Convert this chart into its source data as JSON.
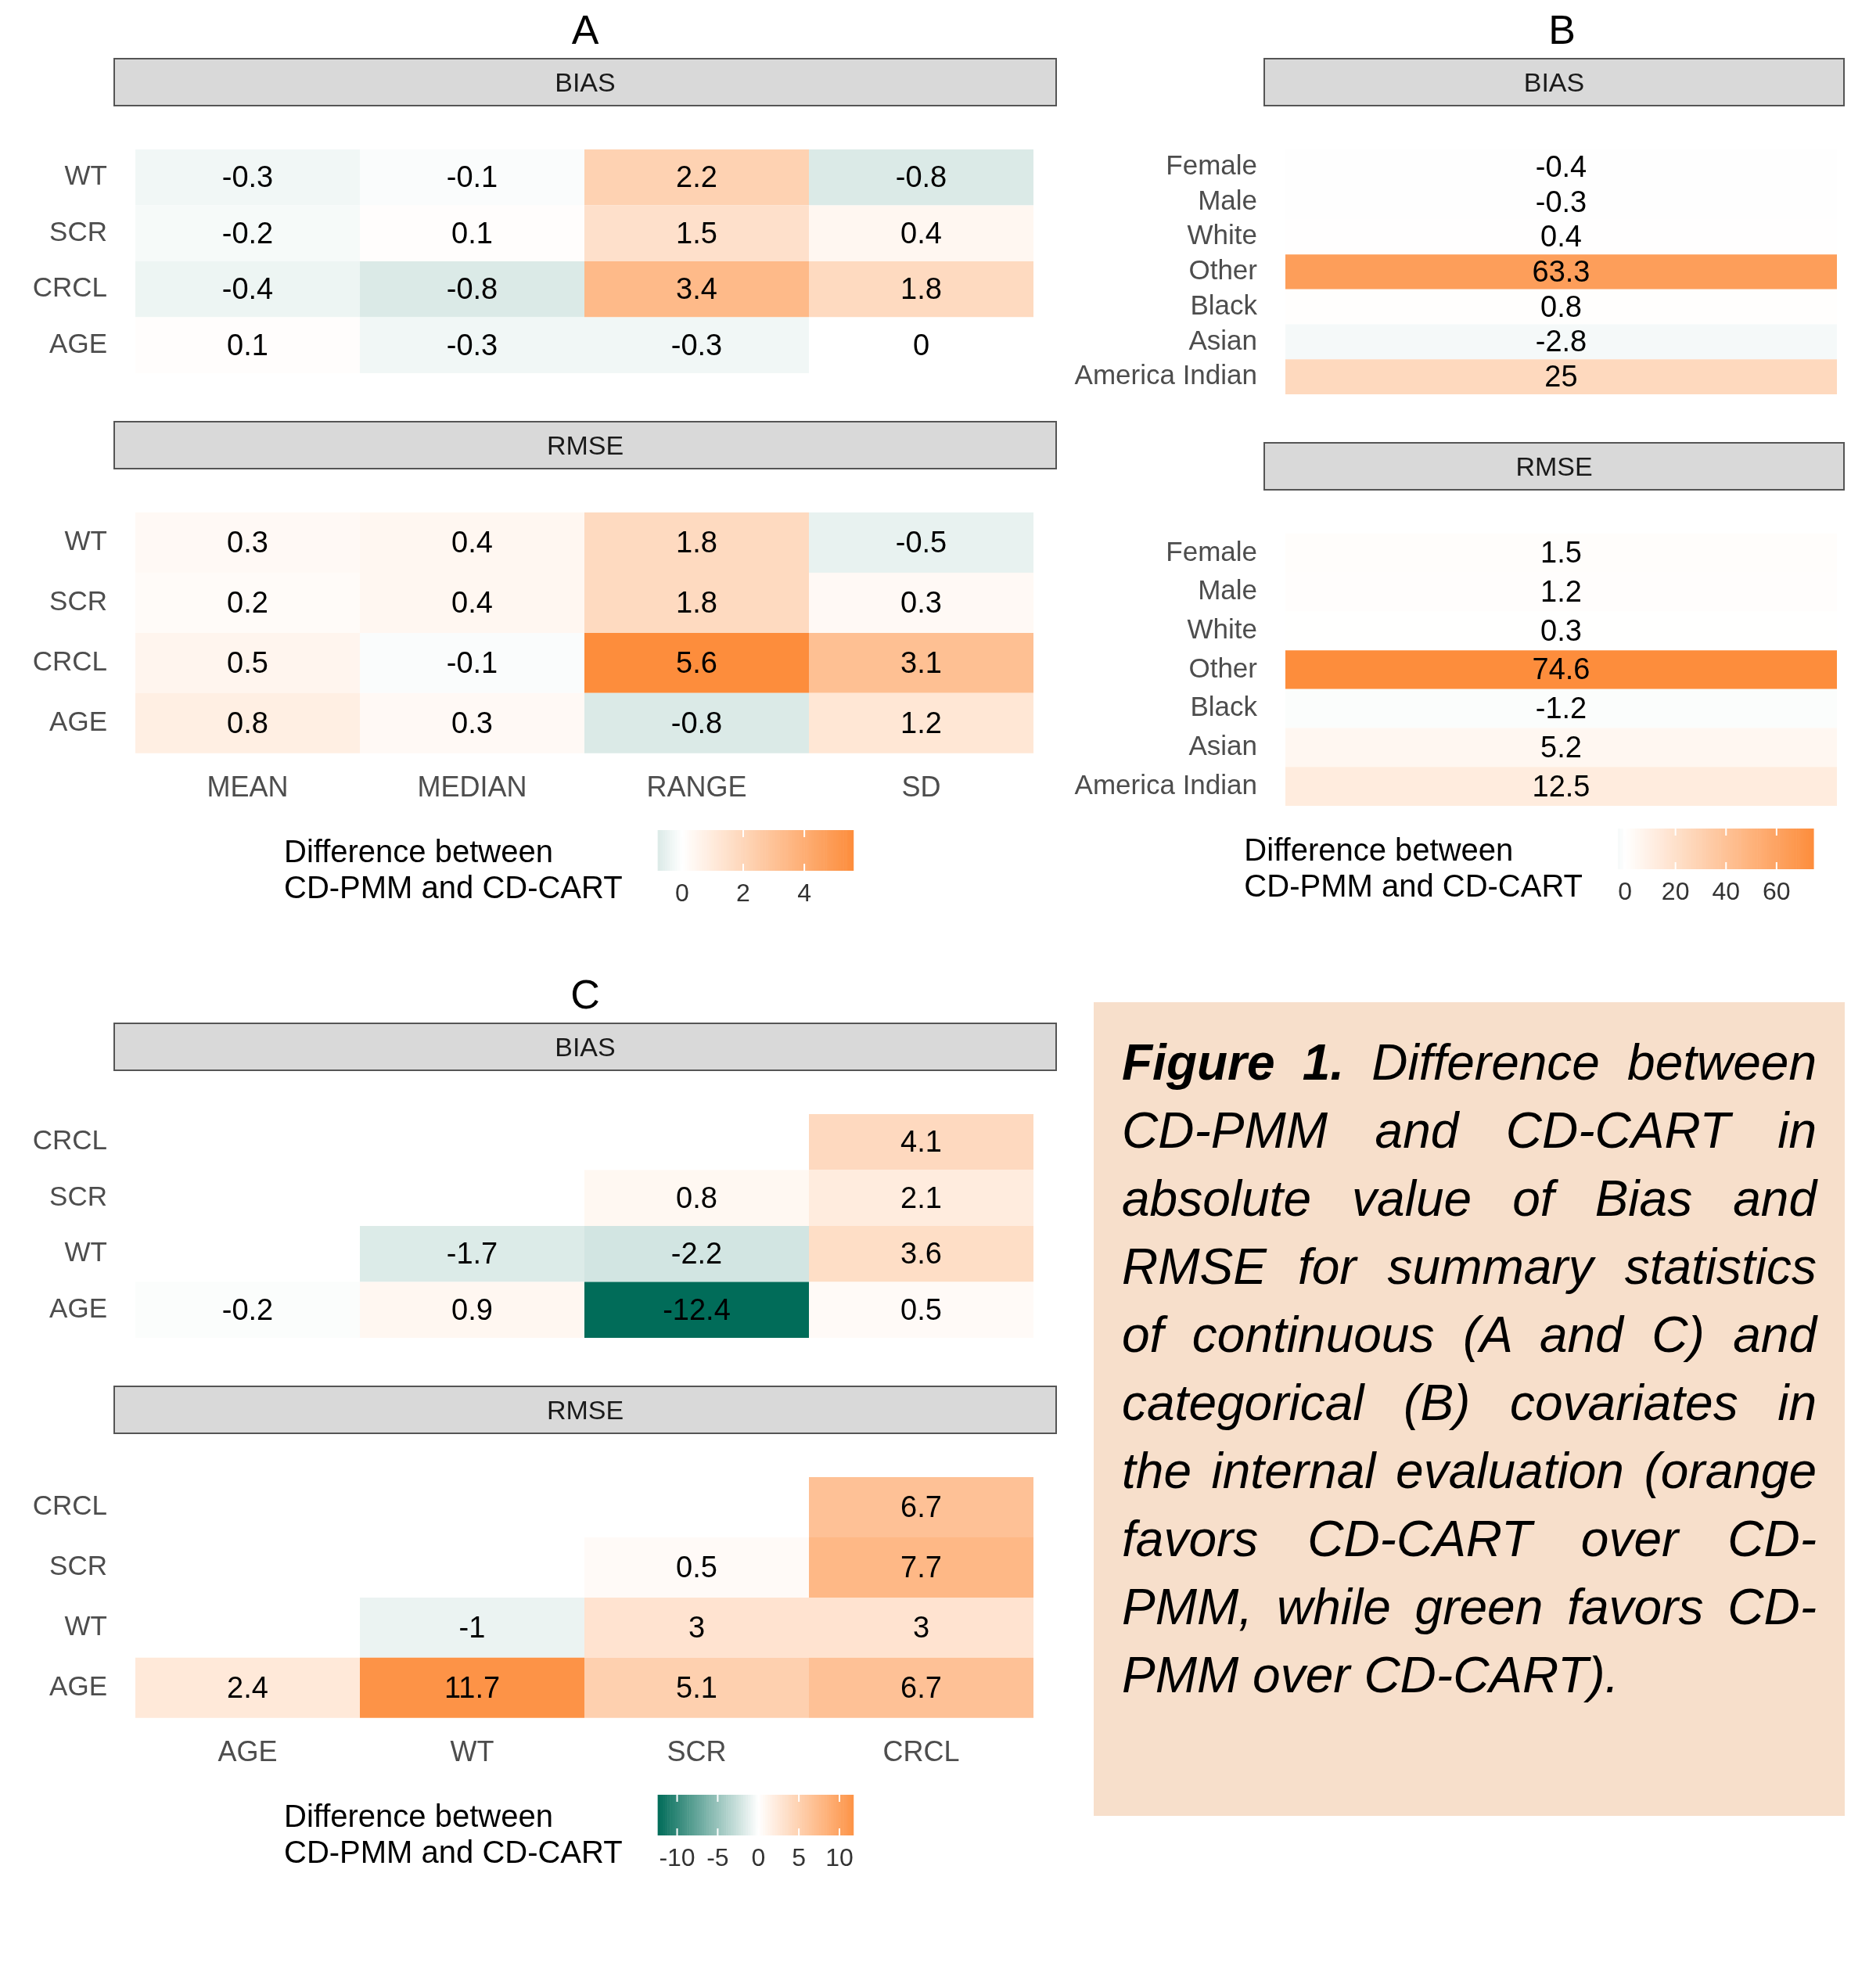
{
  "chart_data": [
    {
      "type": "heatmap",
      "title": "A",
      "subtitle": "BIAS",
      "categories": [
        null,
        null,
        null,
        null
      ],
      "y_categories": [
        "WT",
        "SCR",
        "CRCL",
        "AGE"
      ],
      "data_labels": true,
      "cells": [
        [
          -0.3,
          -0.1,
          2.2,
          -0.8
        ],
        [
          -0.2,
          0.1,
          1.5,
          0.4
        ],
        [
          -0.4,
          -0.8,
          3.4,
          1.8
        ],
        [
          0.1,
          -0.3,
          -0.3,
          0
        ]
      ]
    },
    {
      "type": "heatmap",
      "subtitle": "RMSE",
      "categories": [
        "MEAN",
        "MEDIAN",
        "RANGE",
        "SD"
      ],
      "y_categories": [
        "WT",
        "SCR",
        "CRCL",
        "AGE"
      ],
      "data_labels": true,
      "clim": [
        -0.8,
        5.6
      ],
      "cticks": [
        0,
        2,
        4
      ],
      "clabel": "Difference between\nCD-PMM and CD-CART",
      "cells": [
        [
          0.3,
          0.4,
          1.8,
          -0.5
        ],
        [
          0.2,
          0.4,
          1.8,
          0.3
        ],
        [
          0.5,
          -0.1,
          5.6,
          3.1
        ],
        [
          0.8,
          0.3,
          -0.8,
          1.2
        ]
      ]
    },
    {
      "type": "heatmap",
      "title": "B",
      "subtitle": "BIAS",
      "categories": [
        null
      ],
      "y_categories": [
        "Female",
        "Male",
        "White",
        "Other",
        "Black",
        "Asian",
        "America Indian"
      ],
      "data_labels": true,
      "cells": [
        [
          -0.4
        ],
        [
          -0.3
        ],
        [
          0.4
        ],
        [
          63.3
        ],
        [
          0.8
        ],
        [
          -2.8
        ],
        [
          25
        ]
      ]
    },
    {
      "type": "heatmap",
      "subtitle": "RMSE",
      "categories": [
        null
      ],
      "y_categories": [
        "Female",
        "Male",
        "White",
        "Other",
        "Black",
        "Asian",
        "America Indian"
      ],
      "data_labels": true,
      "clim": [
        -2.8,
        74.6
      ],
      "cticks": [
        0,
        20,
        40,
        60
      ],
      "clabel": "Difference between\nCD-PMM and CD-CART",
      "cells": [
        [
          1.5
        ],
        [
          1.2
        ],
        [
          0.3
        ],
        [
          74.6
        ],
        [
          -1.2
        ],
        [
          5.2
        ],
        [
          12.5
        ]
      ]
    },
    {
      "type": "heatmap",
      "title": "C",
      "subtitle": "BIAS",
      "categories": [
        null,
        null,
        null,
        null
      ],
      "y_categories": [
        "CRCL",
        "SCR",
        "WT",
        "AGE"
      ],
      "data_labels": true,
      "cells": [
        [
          null,
          null,
          null,
          4.1
        ],
        [
          null,
          null,
          0.8,
          2.1
        ],
        [
          null,
          -1.7,
          -2.2,
          3.6
        ],
        [
          -0.2,
          0.9,
          -12.4,
          0.5
        ]
      ]
    },
    {
      "type": "heatmap",
      "subtitle": "RMSE",
      "categories": [
        "AGE",
        "WT",
        "SCR",
        "CRCL"
      ],
      "y_categories": [
        "CRCL",
        "SCR",
        "WT",
        "AGE"
      ],
      "data_labels": true,
      "clim": [
        -12.4,
        11.7
      ],
      "cticks": [
        -10,
        -5,
        0,
        5,
        10
      ],
      "clabel": "Difference between\nCD-PMM and CD-CART",
      "cells": [
        [
          null,
          null,
          null,
          6.7
        ],
        [
          null,
          null,
          0.5,
          7.7
        ],
        [
          null,
          -1,
          3,
          3
        ],
        [
          2.4,
          11.7,
          5.1,
          6.7
        ]
      ]
    },
    {
      "type": "other",
      "title": "Figure 1.",
      "annotations": [
        "Difference between CD-PMM and CD-CART in absolute value of Bias and RMSE for summary statistics of continuous (A and C) and categorical (B) covariates in the internal evaluation (orange favors CD-CART over CD-PMM, while green favors CD-PMM over CD-CART)."
      ]
    }
  ]
}
